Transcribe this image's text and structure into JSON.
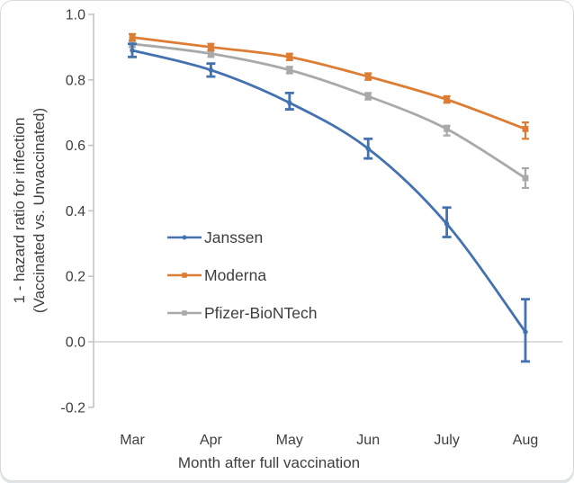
{
  "chart_data": {
    "type": "line",
    "title": "",
    "xlabel": "Month after full vaccination",
    "ylabel": "1 - hazard ratio for infection (Vaccinated vs. Unvaccinated)",
    "ylabel_lines": [
      "1 - hazard ratio for infection",
      "(Vaccinated vs. Unvaccinated)"
    ],
    "categories": [
      "Mar",
      "Apr",
      "May",
      "Jun",
      "July",
      "Aug"
    ],
    "y_tick_labels": [
      "1.0",
      "0.8",
      "0.6",
      "0.4",
      "0.2",
      "0.0",
      "-0.2"
    ],
    "y_tick_values": [
      1.0,
      0.8,
      0.6,
      0.4,
      0.2,
      0.0,
      -0.2
    ],
    "ylim": [
      -0.2,
      1.0
    ],
    "grid": false,
    "zero_line": true,
    "legend_position": "inside-center-left",
    "series": [
      {
        "name": "Janssen",
        "color": "#4472B0",
        "marker": "circle",
        "values": [
          0.89,
          0.83,
          0.73,
          0.59,
          0.36,
          0.03
        ],
        "ci_low": [
          0.87,
          0.81,
          0.71,
          0.56,
          0.32,
          -0.06
        ],
        "ci_high": [
          0.91,
          0.85,
          0.76,
          0.62,
          0.41,
          0.13
        ]
      },
      {
        "name": "Moderna",
        "color": "#DD7D33",
        "marker": "square",
        "values": [
          0.93,
          0.9,
          0.87,
          0.81,
          0.74,
          0.65
        ],
        "ci_low": [
          0.92,
          0.89,
          0.86,
          0.8,
          0.73,
          0.62
        ],
        "ci_high": [
          0.94,
          0.91,
          0.88,
          0.82,
          0.75,
          0.67
        ]
      },
      {
        "name": "Pfizer-BioNTech",
        "color": "#A9A9A9",
        "marker": "square",
        "values": [
          0.91,
          0.88,
          0.83,
          0.75,
          0.65,
          0.5
        ],
        "ci_low": [
          0.9,
          0.87,
          0.82,
          0.74,
          0.63,
          0.47
        ],
        "ci_high": [
          0.92,
          0.89,
          0.84,
          0.76,
          0.66,
          0.53
        ]
      }
    ],
    "colors": {
      "axis": "#C3C3C3",
      "zero_line": "#C8C8C8",
      "text": "#3E3E3E"
    }
  }
}
